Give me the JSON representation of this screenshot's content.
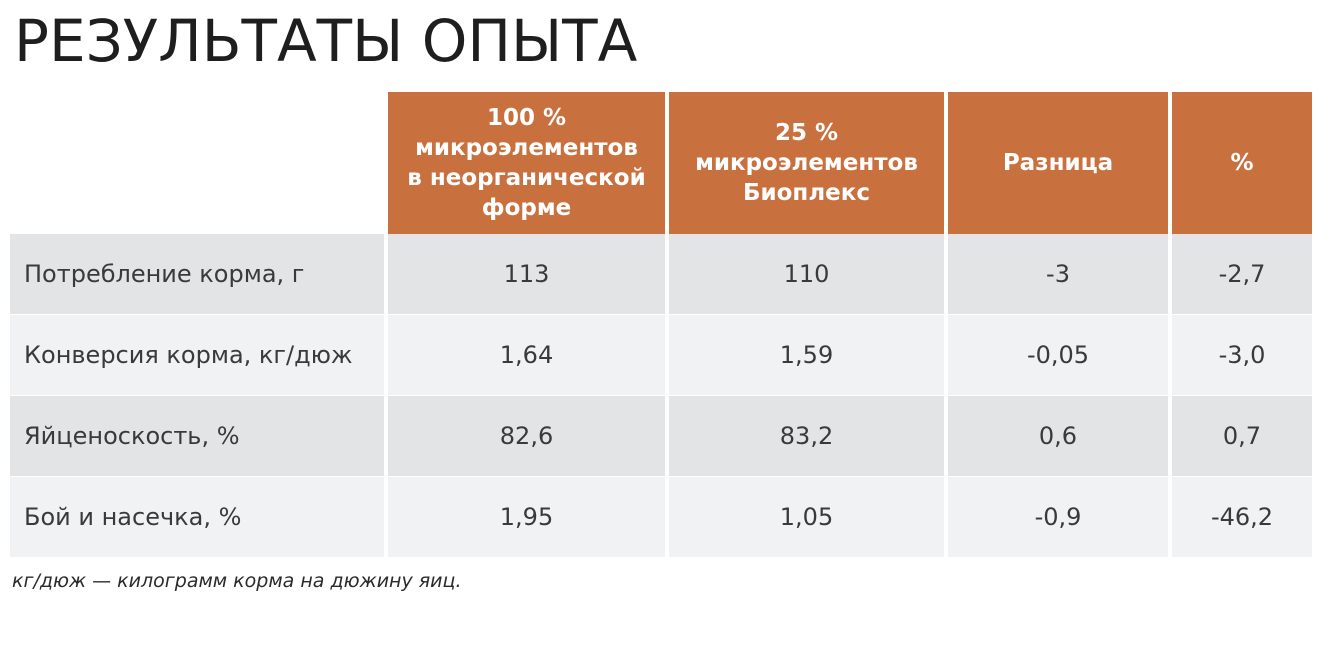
{
  "title": "РЕЗУЛЬТАТЫ ОПЫТА",
  "table": {
    "headers": [
      "",
      "100 % микроэлементов в неорганической форме",
      "25 % микроэлементов Биоплекс",
      "Разница",
      "%"
    ],
    "header_lines": [
      [],
      [
        "100 %",
        "микроэлементов",
        "в неорганической",
        "форме"
      ],
      [
        "25 %",
        "микроэлементов",
        "Биоплекс"
      ],
      [
        "Разница"
      ],
      [
        "%"
      ]
    ],
    "rows": [
      [
        "Потребление корма, г",
        "113",
        "110",
        "-3",
        "-2,7"
      ],
      [
        "Конверсия корма, кг/дюж",
        "1,64",
        "1,59",
        "-0,05",
        "-3,0"
      ],
      [
        "Яйценоскость, %",
        "82,6",
        "83,2",
        "0,6",
        "0,7"
      ],
      [
        "Бой и насечка, %",
        "1,95",
        "1,05",
        "-0,9",
        "-46,2"
      ]
    ]
  },
  "footnote": "кг/дюж — килограмм корма на дюжину яиц.",
  "colors": {
    "header_bg": "#c9703f",
    "header_text": "#ffffff",
    "row_odd_bg": "#e3e4e6",
    "row_even_bg": "#f1f2f3",
    "body_text": "#3a3a3a"
  }
}
